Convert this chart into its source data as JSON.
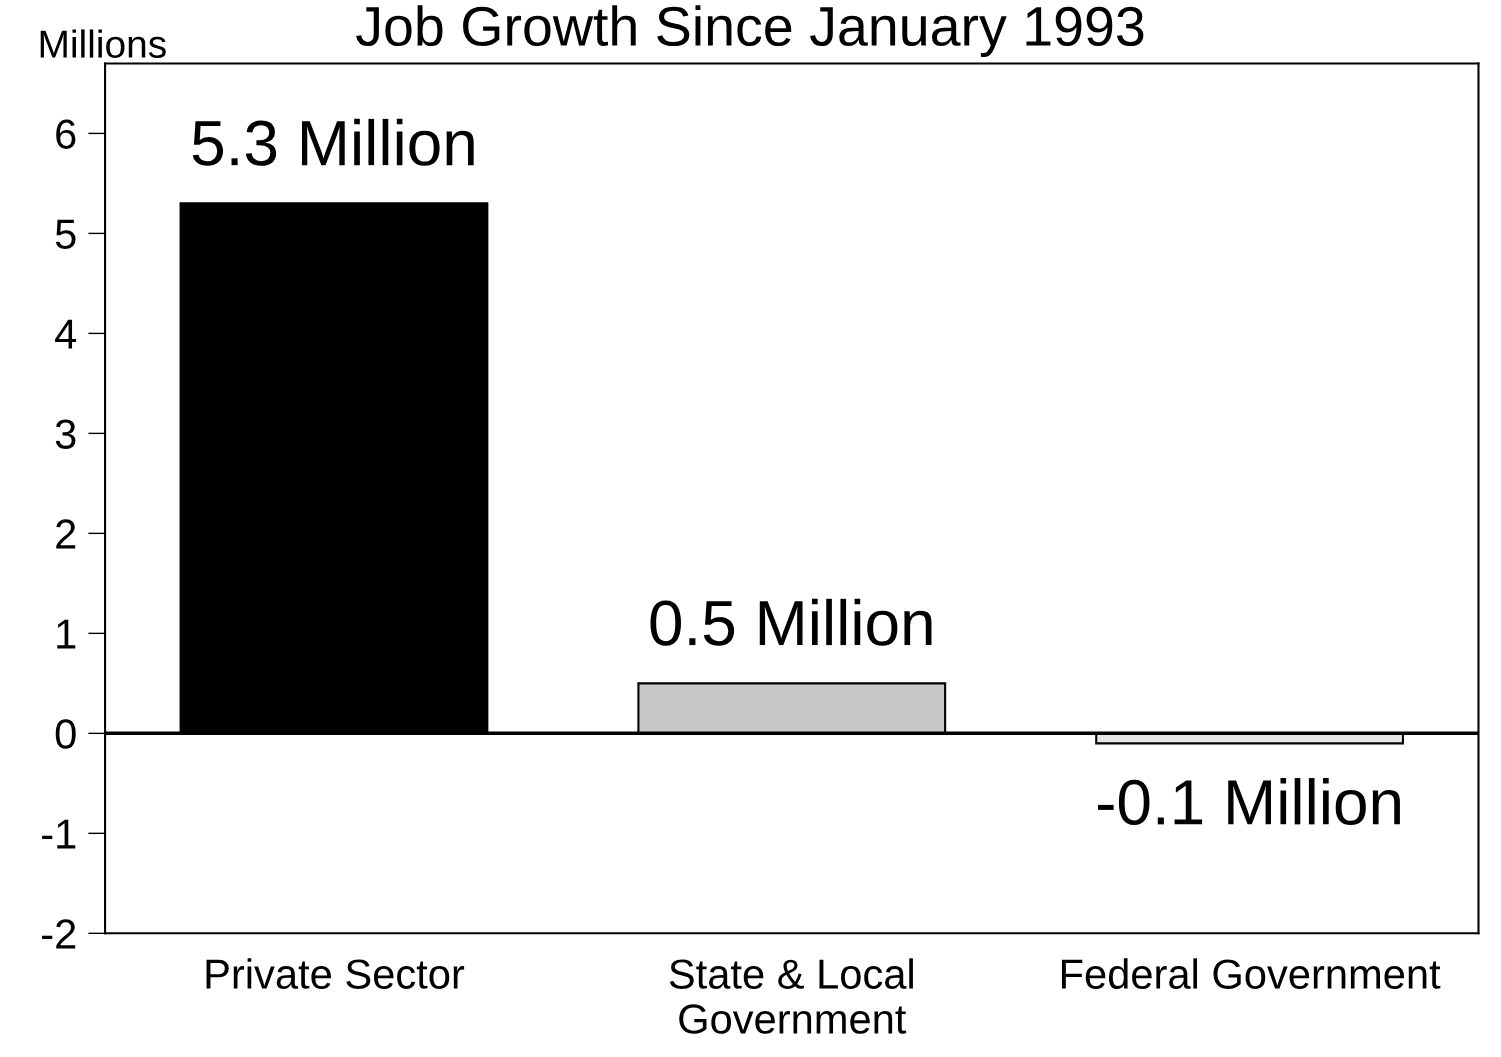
{
  "chart_data": {
    "type": "bar",
    "title": "Job Growth Since January 1993",
    "ylabel": "Millions",
    "categories": [
      "Private Sector",
      "State & Local\nGovernment",
      "Federal Government"
    ],
    "values": [
      5.3,
      0.5,
      -0.1
    ],
    "value_labels": [
      "5.3 Million",
      "0.5 Million",
      "-0.1 Million"
    ],
    "colors": [
      "#000000",
      "#c8c8c8",
      "#e6e6e6"
    ],
    "ylim": [
      -2,
      6.7
    ],
    "yticks": [
      -2,
      -1,
      0,
      1,
      2,
      3,
      4,
      5,
      6
    ],
    "legend": false
  }
}
